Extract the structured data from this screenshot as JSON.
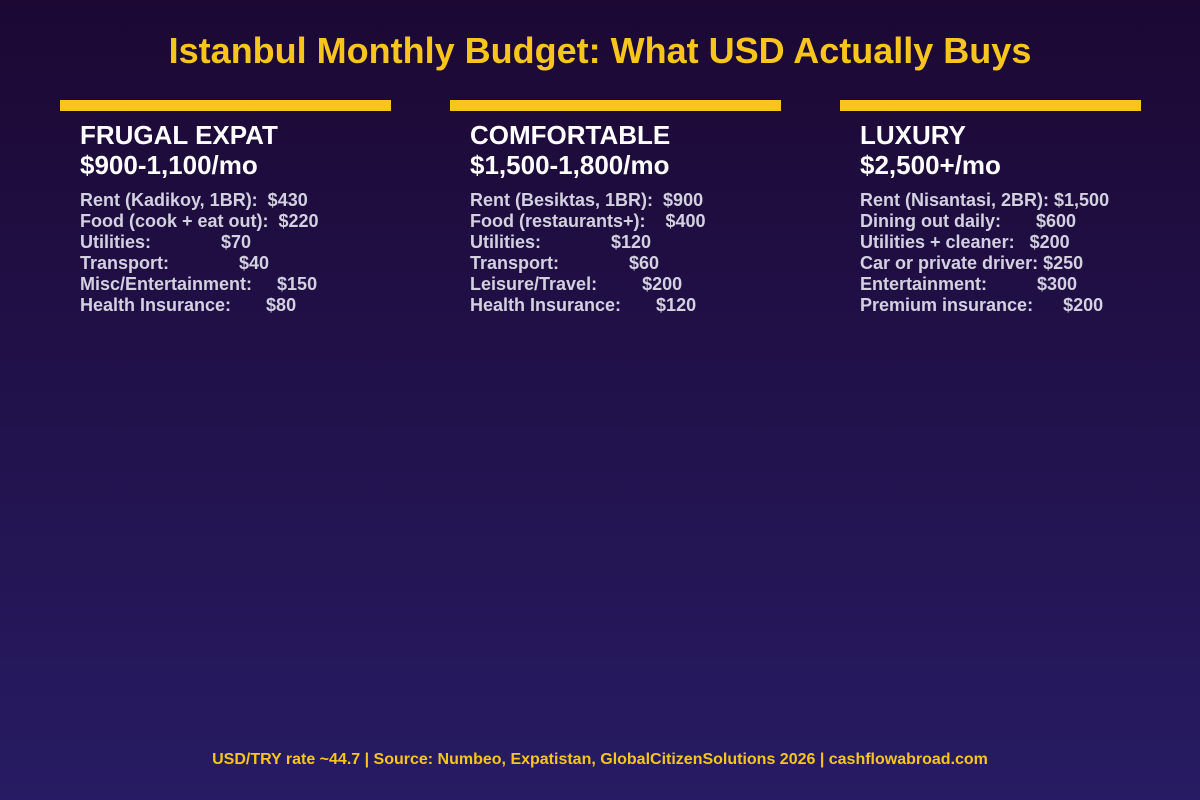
{
  "title": "Istanbul Monthly Budget: What USD Actually Buys",
  "accent_color": "#f8c51c",
  "background_colors": [
    "#1c0833",
    "#271b63"
  ],
  "columns": [
    {
      "heading": "FRUGAL EXPAT",
      "price": "$900-1,100/mo",
      "items": [
        "Rent (Kadikoy, 1BR):  $430",
        "Food (cook + eat out):  $220",
        "Utilities:              $70",
        "Transport:              $40",
        "Misc/Entertainment:     $150",
        "Health Insurance:       $80"
      ]
    },
    {
      "heading": "COMFORTABLE",
      "price": "$1,500-1,800/mo",
      "items": [
        "Rent (Besiktas, 1BR):  $900",
        "Food (restaurants+):    $400",
        "Utilities:              $120",
        "Transport:              $60",
        "Leisure/Travel:         $200",
        "Health Insurance:       $120"
      ]
    },
    {
      "heading": "LUXURY",
      "price": "$2,500+/mo",
      "items": [
        "Rent (Nisantasi, 2BR): $1,500",
        "Dining out daily:       $600",
        "Utilities + cleaner:   $200",
        "Car or private driver: $250",
        "Entertainment:          $300",
        "Premium insurance:      $200"
      ]
    }
  ],
  "footer": "USD/TRY rate ~44.7 | Source: Numbeo, Expatistan, GlobalCitizenSolutions 2026 | cashflowabroad.com"
}
